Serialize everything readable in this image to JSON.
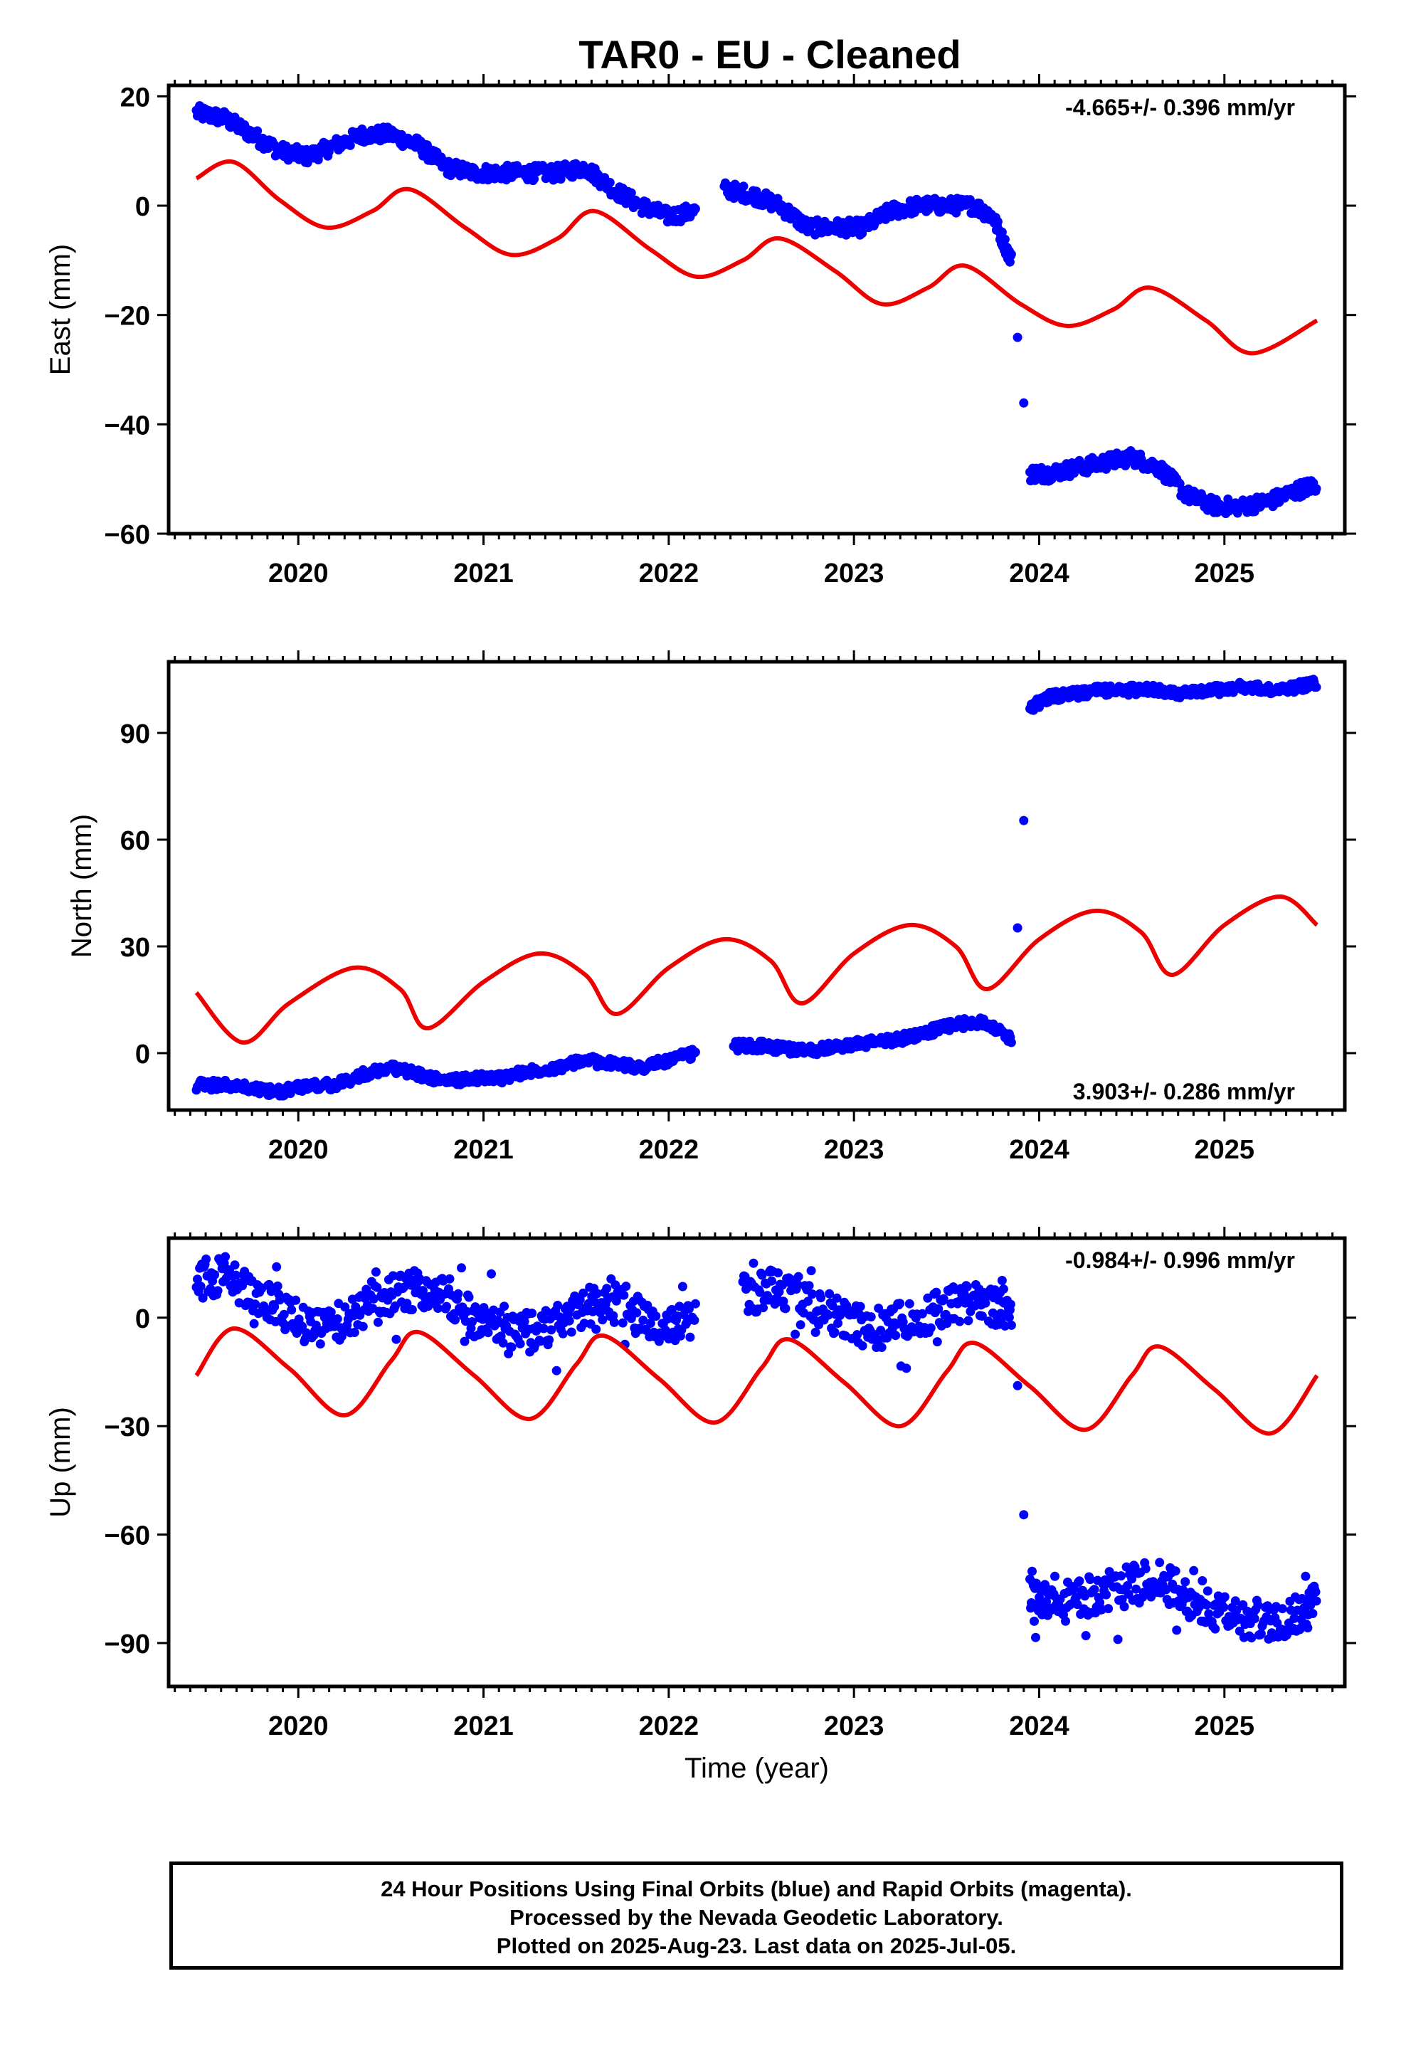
{
  "title": "TAR0  - EU - Cleaned",
  "footer": {
    "line1": "24 Hour Positions Using Final Orbits (blue) and Rapid Orbits (magenta).",
    "line2": "Processed by the Nevada Geodetic Laboratory.",
    "line3": "Plotted on 2025-Aug-23. Last data on 2025-Jul-05."
  },
  "colors": {
    "points": "#0000ff",
    "model": "#ee0000"
  },
  "chart_data": [
    {
      "type": "scatter",
      "ylabel": "East (mm)",
      "xlabel": "",
      "rate": "-4.665+/- 0.396 mm/yr",
      "xlim": [
        2019.3,
        2025.65
      ],
      "ylim": [
        -60,
        22
      ],
      "x_ticks": [
        2020,
        2021,
        2022,
        2023,
        2024,
        2025
      ],
      "y_ticks": [
        -60,
        -40,
        -20,
        0,
        20
      ],
      "series": [
        {
          "kind": "points",
          "x": [
            2019.45,
            2019.6,
            2019.75,
            2019.9,
            2020.05,
            2020.2,
            2020.35,
            2020.5,
            2020.65,
            2020.8,
            2020.95,
            2021.1,
            2021.25,
            2021.4,
            2021.55,
            2021.7,
            2021.85,
            2022.0,
            2022.15,
            2022.25,
            2022.3,
            2022.45,
            2022.6,
            2022.75,
            2022.9,
            2023.05,
            2023.2,
            2023.35,
            2023.5,
            2023.65,
            2023.75,
            2023.85,
            2023.95,
            2024.05,
            2024.2,
            2024.35,
            2024.5,
            2024.65,
            2024.8,
            2024.95,
            2025.1,
            2025.25,
            2025.4,
            2025.5
          ],
          "y": [
            17,
            16,
            13,
            10,
            9,
            11,
            13,
            13,
            11,
            7,
            6,
            6,
            6,
            6,
            7,
            3,
            0,
            -2,
            -1,
            null,
            3,
            2,
            0,
            -4,
            -4,
            -4,
            -1,
            0,
            0,
            0,
            -2,
            -10,
            -49,
            -49,
            -48,
            -47,
            -46,
            -48,
            -53,
            -55,
            -55,
            -54,
            -52,
            -51
          ]
        },
        {
          "kind": "model",
          "x": [
            2019.45,
            2019.65,
            2019.9,
            2020.15,
            2020.4,
            2020.6,
            2020.9,
            2021.15,
            2021.4,
            2021.6,
            2021.9,
            2022.15,
            2022.4,
            2022.6,
            2022.9,
            2023.15,
            2023.4,
            2023.6,
            2023.9,
            2024.15,
            2024.4,
            2024.6,
            2024.9,
            2025.15,
            2025.5
          ],
          "y": [
            5,
            8,
            1,
            -4,
            -1,
            3,
            -4,
            -9,
            -6,
            -1,
            -8,
            -13,
            -10,
            -6,
            -12,
            -18,
            -15,
            -11,
            -18,
            -22,
            -19,
            -15,
            -21,
            -27,
            -21
          ]
        }
      ]
    },
    {
      "type": "scatter",
      "ylabel": "North (mm)",
      "xlabel": "",
      "rate": "3.903+/- 0.286 mm/yr",
      "xlim": [
        2019.3,
        2025.65
      ],
      "ylim": [
        -16,
        110
      ],
      "x_ticks": [
        2020,
        2021,
        2022,
        2023,
        2024,
        2025
      ],
      "y_ticks": [
        0,
        30,
        60,
        90
      ],
      "series": [
        {
          "kind": "points",
          "x": [
            2019.45,
            2019.6,
            2019.75,
            2019.9,
            2020.05,
            2020.2,
            2020.35,
            2020.5,
            2020.65,
            2020.8,
            2020.95,
            2021.1,
            2021.25,
            2021.4,
            2021.55,
            2021.7,
            2021.85,
            2022.0,
            2022.15,
            2022.25,
            2022.35,
            2022.5,
            2022.65,
            2022.8,
            2022.95,
            2023.1,
            2023.25,
            2023.4,
            2023.55,
            2023.7,
            2023.85,
            2023.95,
            2024.05,
            2024.2,
            2024.35,
            2024.5,
            2024.65,
            2024.8,
            2024.95,
            2025.1,
            2025.25,
            2025.4,
            2025.5
          ],
          "y": [
            -9,
            -9,
            -10,
            -11,
            -9,
            -9,
            -6,
            -4,
            -6,
            -8,
            -7,
            -7,
            -5,
            -4,
            -2,
            -3,
            -4,
            -2,
            0,
            null,
            2,
            2,
            1,
            1,
            2,
            3,
            4,
            6,
            8,
            9,
            4,
            97,
            100,
            101,
            102,
            102,
            102,
            101,
            102,
            103,
            102,
            103,
            104
          ]
        },
        {
          "kind": "model",
          "x": [
            2019.45,
            2019.7,
            2019.95,
            2020.3,
            2020.55,
            2020.7,
            2021.0,
            2021.3,
            2021.55,
            2021.72,
            2022.0,
            2022.3,
            2022.55,
            2022.72,
            2023.0,
            2023.3,
            2023.55,
            2023.72,
            2024.0,
            2024.3,
            2024.55,
            2024.72,
            2025.0,
            2025.3,
            2025.5
          ],
          "y": [
            17,
            3,
            14,
            24,
            18,
            7,
            20,
            28,
            22,
            11,
            24,
            32,
            26,
            14,
            28,
            36,
            30,
            18,
            32,
            40,
            34,
            22,
            36,
            44,
            36
          ]
        }
      ]
    },
    {
      "type": "scatter",
      "ylabel": "Up (mm)",
      "xlabel": "Time (year)",
      "rate": "-0.984+/- 0.996 mm/yr",
      "xlim": [
        2019.3,
        2025.65
      ],
      "ylim": [
        -102,
        22
      ],
      "x_ticks": [
        2020,
        2021,
        2022,
        2023,
        2024,
        2025
      ],
      "y_ticks": [
        -90,
        -60,
        -30,
        0
      ],
      "series": [
        {
          "kind": "points",
          "x": [
            2019.45,
            2019.6,
            2019.75,
            2019.9,
            2020.05,
            2020.2,
            2020.35,
            2020.5,
            2020.65,
            2020.8,
            2020.95,
            2021.1,
            2021.25,
            2021.4,
            2021.55,
            2021.7,
            2021.85,
            2022.0,
            2022.15,
            2022.25,
            2022.4,
            2022.55,
            2022.7,
            2022.85,
            2023.0,
            2023.15,
            2023.3,
            2023.45,
            2023.6,
            2023.75,
            2023.85,
            2023.95,
            2024.05,
            2024.2,
            2024.35,
            2024.5,
            2024.65,
            2024.8,
            2024.95,
            2025.1,
            2025.25,
            2025.4,
            2025.5
          ],
          "y": [
            10,
            12,
            7,
            3,
            -3,
            -2,
            2,
            6,
            8,
            5,
            0,
            -2,
            -4,
            -2,
            3,
            4,
            0,
            -2,
            -1,
            null,
            6,
            8,
            6,
            2,
            -2,
            -3,
            0,
            2,
            4,
            3,
            2,
            -75,
            -80,
            -78,
            -76,
            -74,
            -72,
            -78,
            -82,
            -83,
            -84,
            -82,
            -79
          ]
        },
        {
          "kind": "model",
          "x": [
            2019.45,
            2019.65,
            2019.95,
            2020.25,
            2020.5,
            2020.65,
            2020.95,
            2021.25,
            2021.5,
            2021.65,
            2021.95,
            2022.25,
            2022.5,
            2022.65,
            2022.95,
            2023.25,
            2023.5,
            2023.65,
            2023.95,
            2024.25,
            2024.5,
            2024.65,
            2024.95,
            2025.25,
            2025.5
          ],
          "y": [
            -16,
            -3,
            -14,
            -27,
            -12,
            -4,
            -16,
            -28,
            -13,
            -5,
            -17,
            -29,
            -14,
            -6,
            -18,
            -30,
            -15,
            -7,
            -19,
            -31,
            -16,
            -8,
            -20,
            -32,
            -16
          ]
        }
      ]
    }
  ]
}
